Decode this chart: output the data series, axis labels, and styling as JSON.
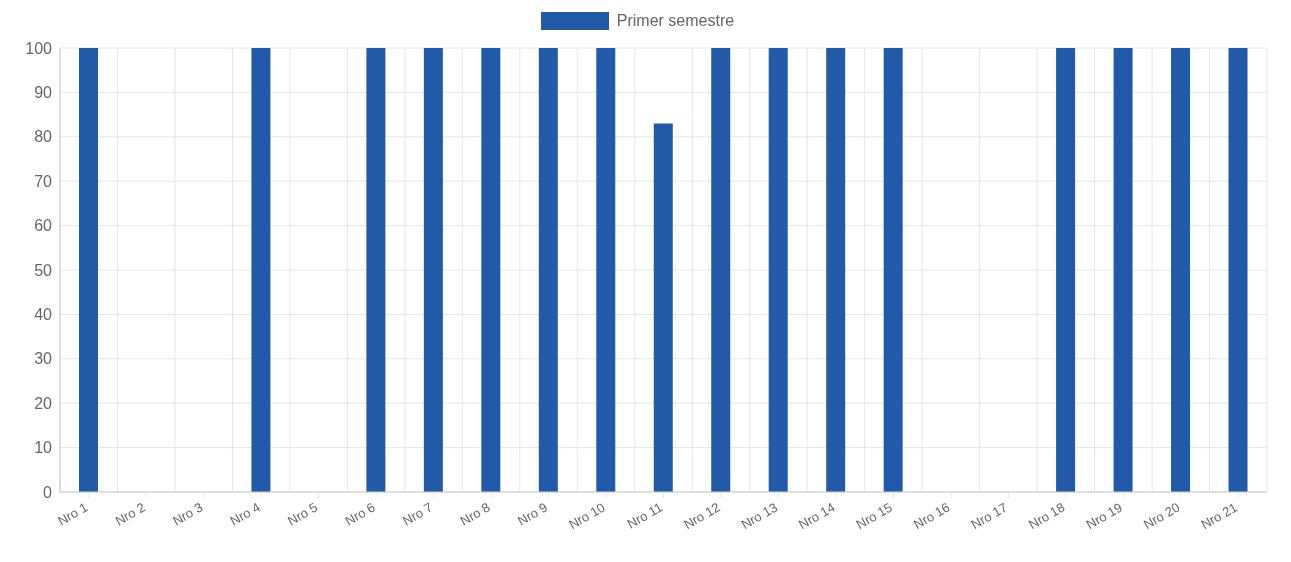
{
  "chart_data": {
    "type": "bar",
    "categories": [
      "Nro 1",
      "Nro 2",
      "Nro 3",
      "Nro 4",
      "Nro 5",
      "Nro 6",
      "Nro 7",
      "Nro 8",
      "Nro 9",
      "Nro 10",
      "Nro 11",
      "Nro 12",
      "Nro 13",
      "Nro 14",
      "Nro 15",
      "Nro 16",
      "Nro 17",
      "Nro 18",
      "Nro 19",
      "Nro 20",
      "Nro 21"
    ],
    "series": [
      {
        "name": "Primer semestre",
        "color": "#225aaa",
        "values": [
          100,
          0,
          0,
          100,
          0,
          100,
          100,
          100,
          100,
          100,
          83,
          100,
          100,
          100,
          100,
          0,
          0,
          100,
          100,
          100,
          100
        ]
      }
    ],
    "ylim": [
      0,
      100
    ],
    "yticks": [
      0,
      10,
      20,
      30,
      40,
      50,
      60,
      70,
      80,
      90,
      100
    ],
    "grid": true,
    "legend": "top"
  }
}
